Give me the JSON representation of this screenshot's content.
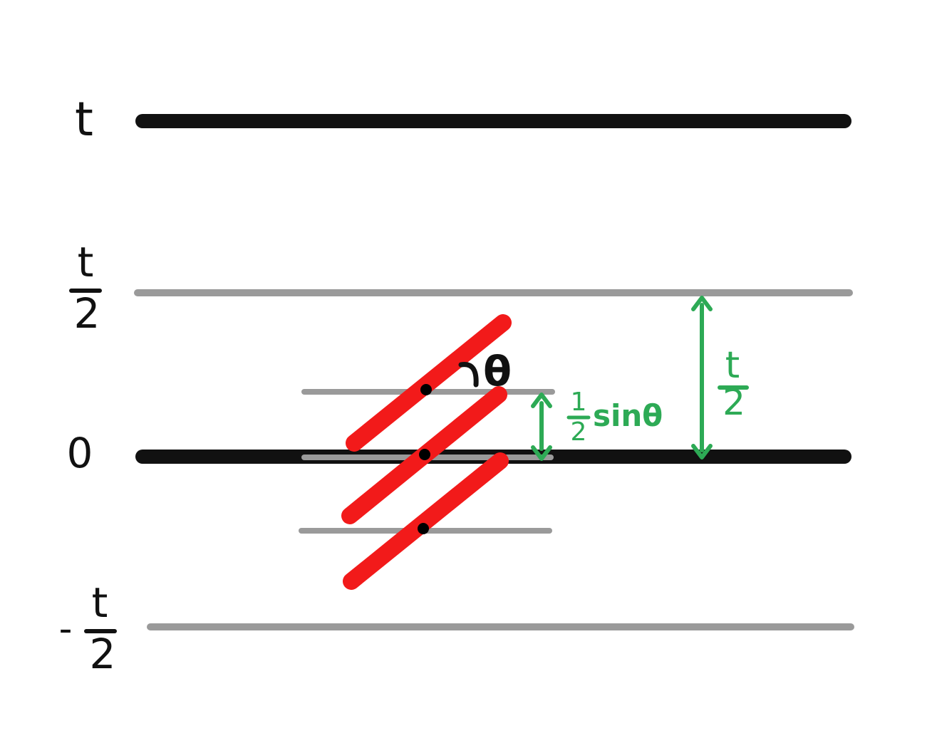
{
  "labels": {
    "t_top": "t",
    "half_t_num": "t",
    "half_t_den": "2",
    "zero": "0",
    "neg_sign": "-",
    "neg_half_t_num": "t",
    "neg_half_t_den": "2",
    "theta": "θ",
    "green_frac_num": "t",
    "green_frac_den": "2",
    "small_frac_num": "1",
    "small_frac_den": "2",
    "sin_theta": "sinθ"
  },
  "colors": {
    "black_line": "#111111",
    "gray_line": "#9a9a9a",
    "needle": "#f21a1a",
    "green": "#2daa55",
    "dot": "#000000"
  }
}
